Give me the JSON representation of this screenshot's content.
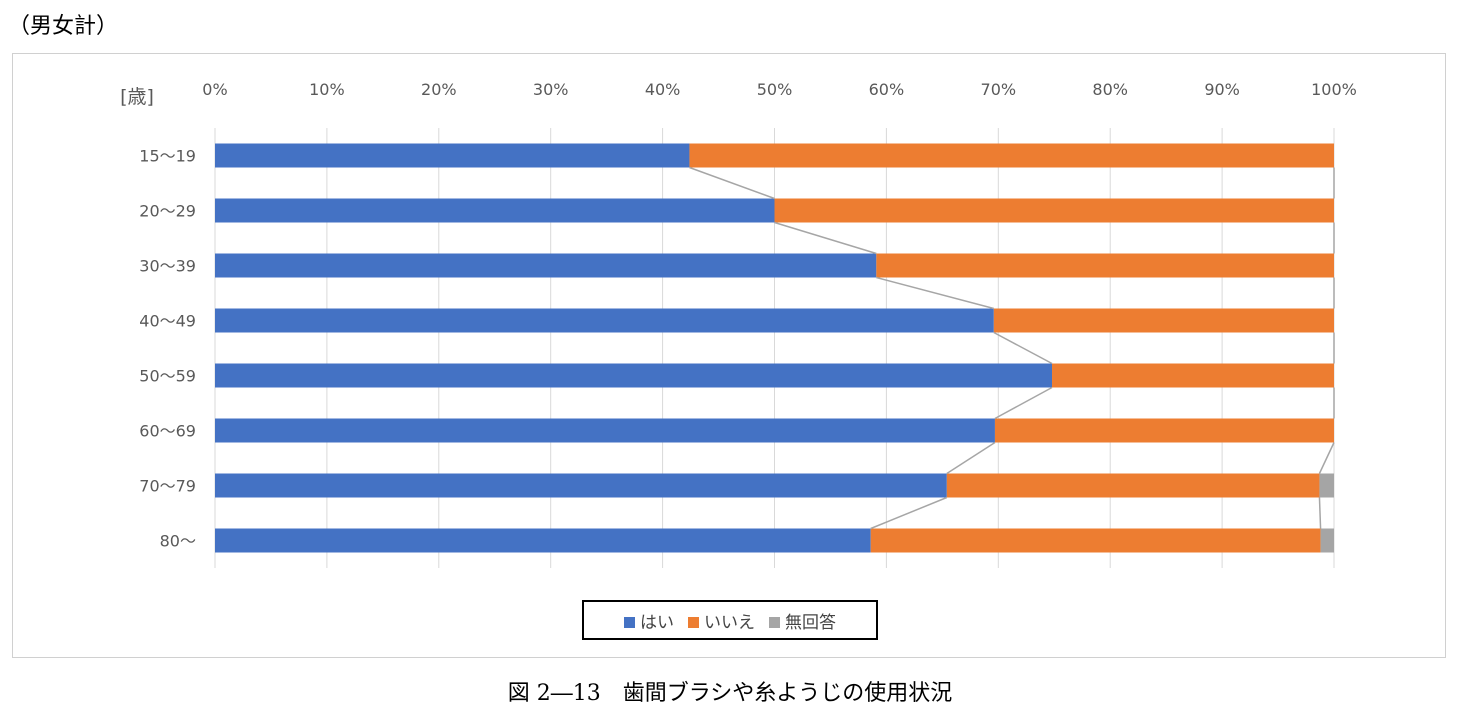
{
  "note": "（男女計）",
  "caption": "図 2―13　歯間ブラシや糸ようじの使用状況",
  "chart_data": {
    "type": "bar",
    "orientation": "horizontal",
    "stacked": "100%",
    "ylabel": "[歳]",
    "categories": [
      "15〜19",
      "20〜29",
      "30〜39",
      "40〜49",
      "50〜59",
      "60〜69",
      "70〜79",
      "80〜"
    ],
    "xlim": [
      0,
      100
    ],
    "xticks": [
      "0%",
      "10%",
      "20%",
      "30%",
      "40%",
      "50%",
      "60%",
      "70%",
      "80%",
      "90%",
      "100%"
    ],
    "grid": true,
    "legend": "bottom",
    "series": [
      {
        "name": "はい",
        "color": "#4472C4",
        "values": [
          42.4,
          50.0,
          59.1,
          69.6,
          74.8,
          69.7,
          65.4,
          58.6
        ]
      },
      {
        "name": "いいえ",
        "color": "#ED7D31",
        "values": [
          57.6,
          50.0,
          40.9,
          30.4,
          25.2,
          30.3,
          33.3,
          40.2
        ]
      },
      {
        "name": "無回答",
        "color": "#A5A5A5",
        "values": [
          0,
          0,
          0,
          0,
          0,
          0,
          1.3,
          1.2
        ]
      }
    ],
    "series_lines": true
  }
}
